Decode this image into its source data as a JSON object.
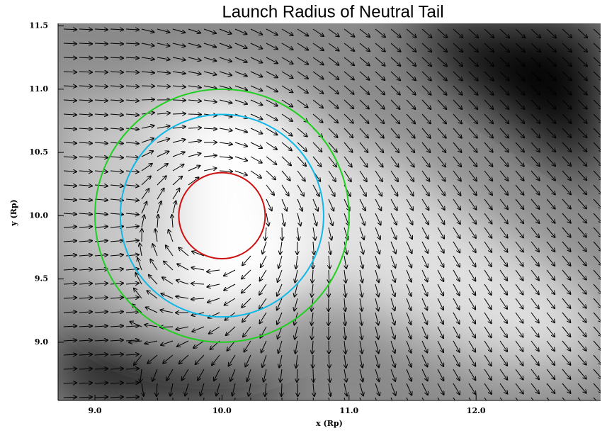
{
  "chart_data": {
    "type": "vector-field",
    "title": "Launch Radius of Neutral Tail",
    "x_label": "x (Rp)",
    "y_label": "y (Rp)",
    "xlim": [
      8.71,
      12.98
    ],
    "ylim": [
      8.54,
      11.52
    ],
    "xticks": [
      {
        "value": 9,
        "label": "9.0"
      },
      {
        "value": 10,
        "label": "10.0"
      },
      {
        "value": 11,
        "label": "11.0"
      },
      {
        "value": 12,
        "label": "12.0"
      }
    ],
    "yticks": [
      {
        "value": 9,
        "label": "9.0"
      },
      {
        "value": 9.5,
        "label": "9.5"
      },
      {
        "value": 10,
        "label": "10.0"
      },
      {
        "value": 10.5,
        "label": "10.5"
      },
      {
        "value": 11,
        "label": "11.0"
      },
      {
        "value": 11.5,
        "label": "11.5"
      }
    ],
    "circles": [
      {
        "color": "#d01010",
        "x": 10,
        "y": 10,
        "r": 0.34
      },
      {
        "color": "#10b8e8",
        "x": 10,
        "y": 10,
        "r": 0.8
      },
      {
        "color": "#20d020",
        "x": 10,
        "y": 10,
        "r": 1.0
      }
    ]
  }
}
